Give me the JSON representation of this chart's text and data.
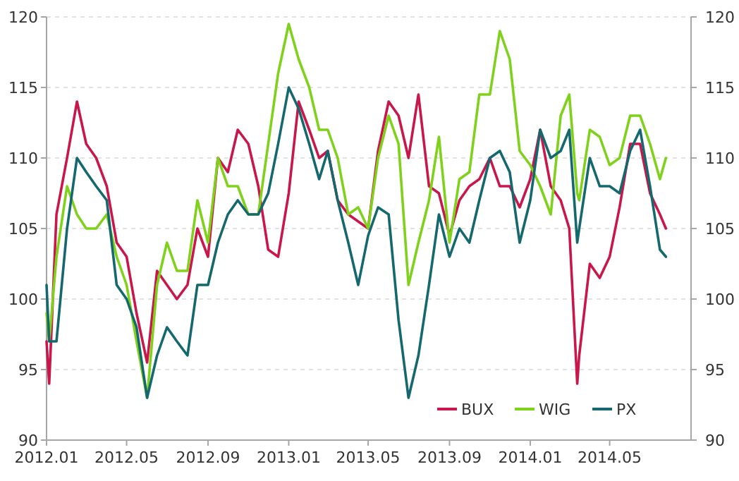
{
  "chart_data": {
    "type": "line",
    "x": [
      "2012-01-01",
      "2012-01-05",
      "2012-01-16",
      "2012-02-01",
      "2012-02-16",
      "2012-03-01",
      "2012-03-16",
      "2012-04-01",
      "2012-04-16",
      "2012-05-01",
      "2012-05-16",
      "2012-06-01",
      "2012-06-16",
      "2012-07-01",
      "2012-07-16",
      "2012-08-01",
      "2012-08-16",
      "2012-09-01",
      "2012-09-16",
      "2012-10-01",
      "2012-10-16",
      "2012-11-01",
      "2012-11-16",
      "2012-12-01",
      "2012-12-16",
      "2013-01-01",
      "2013-01-16",
      "2013-02-01",
      "2013-02-16",
      "2013-03-01",
      "2013-03-16",
      "2013-04-01",
      "2013-04-16",
      "2013-05-01",
      "2013-05-16",
      "2013-06-01",
      "2013-06-16",
      "2013-07-01",
      "2013-07-16",
      "2013-08-01",
      "2013-08-16",
      "2013-09-01",
      "2013-09-16",
      "2013-10-01",
      "2013-10-16",
      "2013-11-01",
      "2013-11-16",
      "2013-12-01",
      "2013-12-16",
      "2014-01-01",
      "2014-01-16",
      "2014-02-01",
      "2014-02-16",
      "2014-03-01",
      "2014-03-13",
      "2014-03-16",
      "2014-04-01",
      "2014-04-16",
      "2014-05-01",
      "2014-05-16",
      "2014-06-01",
      "2014-06-16",
      "2014-07-01",
      "2014-07-16",
      "2014-07-25"
    ],
    "series": [
      {
        "name": "BUX",
        "color": "#c8174a",
        "values": [
          97,
          94,
          106,
          110,
          114,
          111,
          110,
          108,
          104,
          103,
          99,
          95.5,
          102,
          101,
          100,
          101,
          105,
          103,
          110,
          109,
          112,
          111,
          108,
          103.5,
          103,
          107.5,
          114,
          112,
          110,
          110.5,
          107,
          106,
          105.5,
          105,
          110.5,
          114,
          113,
          110,
          114.5,
          108,
          107.5,
          104.5,
          107,
          108,
          108.5,
          110,
          108,
          108,
          106.5,
          108.5,
          112,
          108,
          107,
          105,
          94,
          96,
          102.5,
          101.5,
          103,
          106.5,
          111,
          111,
          107.5,
          106,
          105
        ]
      },
      {
        "name": "WIG",
        "color": "#7fd11b",
        "values": [
          99,
          97,
          103,
          108,
          106,
          105,
          105,
          106,
          103,
          101,
          97,
          93,
          101,
          104,
          102,
          102,
          107,
          104,
          110,
          108,
          108,
          106,
          106,
          111,
          116,
          119.5,
          117,
          115,
          112,
          112,
          110,
          106,
          106.5,
          105,
          110,
          113,
          111,
          101,
          104,
          107,
          111.5,
          104,
          108.5,
          109,
          114.5,
          114.5,
          119,
          117,
          110.5,
          109.5,
          108,
          106,
          113,
          114.5,
          107.5,
          107,
          112,
          111.5,
          109.5,
          110,
          113,
          113,
          111,
          108.5,
          110
        ]
      },
      {
        "name": "PX",
        "color": "#15686e",
        "values": [
          101,
          97,
          97,
          105,
          110,
          109,
          108,
          107,
          101,
          100,
          98,
          93,
          96,
          98,
          97,
          96,
          101,
          101,
          104,
          106,
          107,
          106,
          106,
          107.5,
          111,
          115,
          113.5,
          111,
          108.5,
          110.5,
          107,
          104,
          101,
          104.5,
          106.5,
          106,
          98.5,
          93,
          96,
          101,
          106,
          103,
          105,
          104,
          107,
          110,
          110.5,
          109,
          104,
          107,
          112,
          110,
          110.5,
          112,
          104,
          105,
          110,
          108,
          108,
          107.5,
          110.5,
          112,
          108,
          103.5,
          103
        ]
      }
    ],
    "xlim": [
      "2012-01-01",
      "2014-09-01"
    ],
    "xticks": [
      {
        "value": "2012-01-01",
        "label": "2012.01"
      },
      {
        "value": "2012-05-01",
        "label": "2012.05"
      },
      {
        "value": "2012-09-01",
        "label": "2012.09"
      },
      {
        "value": "2013-01-01",
        "label": "2013.01"
      },
      {
        "value": "2013-05-01",
        "label": "2013.05"
      },
      {
        "value": "2013-09-01",
        "label": "2013.09"
      },
      {
        "value": "2014-01-01",
        "label": "2014.01"
      },
      {
        "value": "2014-05-01",
        "label": "2014.05"
      }
    ],
    "ylim": [
      90,
      120
    ],
    "yticks": [
      90,
      95,
      100,
      105,
      110,
      115,
      120
    ],
    "y2lim": [
      90,
      120
    ],
    "y2ticks": [
      90,
      95,
      100,
      105,
      110,
      115,
      120
    ],
    "grid": "y",
    "legend": "bottom right",
    "marker": "none",
    "line_style": "solid"
  }
}
